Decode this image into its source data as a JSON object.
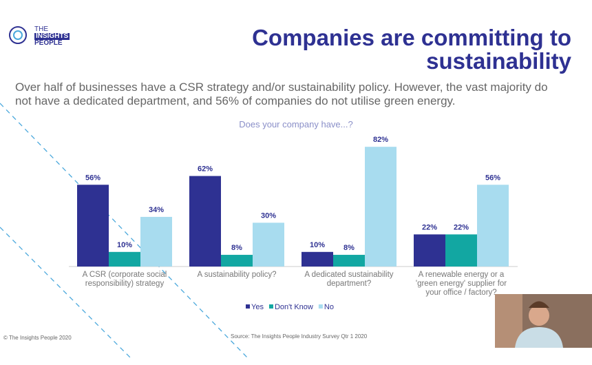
{
  "logo": {
    "line1": "THE",
    "line2": "INSIGHTS",
    "line3": "PEOPLE"
  },
  "heading": "Companies are committing to sustainability",
  "summary": "Over half of businesses have a CSR strategy and/or sustainability policy. However, the vast majority do not have a dedicated department, and 56% of companies do not utilise green energy.",
  "chart_data": {
    "type": "bar",
    "title": "Does your company have...?",
    "categories": [
      "A CSR (corporate social responsibility) strategy",
      "A sustainability policy?",
      "A dedicated sustainability department?",
      "A renewable energy or a 'green energy' supplier for your office / factory?"
    ],
    "series": [
      {
        "name": "Yes",
        "color": "#2e3192",
        "values": [
          56,
          62,
          10,
          22
        ],
        "value_labels": [
          "56%",
          "62%",
          "10%",
          "22%"
        ]
      },
      {
        "name": "Don't Know",
        "color": "#12a7a2",
        "values": [
          10,
          8,
          8,
          22
        ],
        "value_labels": [
          "10%",
          "8%",
          "8%",
          "22%"
        ]
      },
      {
        "name": "No",
        "color": "#a8dcef",
        "values": [
          34,
          30,
          82,
          56
        ],
        "value_labels": [
          "34%",
          "30%",
          "82%",
          "56%"
        ]
      }
    ]
  },
  "footer": {
    "copyright": "© The Insights People 2020",
    "source": "Source: The Insights People Industry Survey Qtr 1 2020"
  }
}
